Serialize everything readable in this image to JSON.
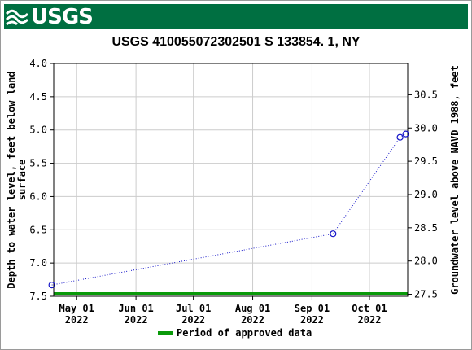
{
  "header": {
    "logo_text": "USGS"
  },
  "colors": {
    "banner": "#006f41",
    "series": "#1414c8",
    "approved": "#0a9a0a",
    "grid": "#cccccc"
  },
  "chart_data": {
    "type": "line",
    "title": "USGS 410055072302501 S 133854. 1, NY",
    "ylabel_left": "Depth to water level, feet below land surface",
    "ylabel_right": "Groundwater level above NAVD 1988, feet",
    "x_ticks": [
      {
        "date": "2022-05-01",
        "month": "May 01",
        "year": "2022"
      },
      {
        "date": "2022-06-01",
        "month": "Jun 01",
        "year": "2022"
      },
      {
        "date": "2022-07-01",
        "month": "Jul 01",
        "year": "2022"
      },
      {
        "date": "2022-08-01",
        "month": "Aug 01",
        "year": "2022"
      },
      {
        "date": "2022-09-01",
        "month": "Sep 01",
        "year": "2022"
      },
      {
        "date": "2022-10-01",
        "month": "Oct 01",
        "year": "2022"
      }
    ],
    "xlim": [
      "2022-04-19",
      "2022-10-21"
    ],
    "ylim_left": [
      7.5,
      4.0
    ],
    "y_ticks_left": [
      "4.0",
      "4.5",
      "5.0",
      "5.5",
      "6.0",
      "6.5",
      "7.0",
      "7.5"
    ],
    "ylim_right": [
      27.47,
      30.97
    ],
    "y_ticks_right": [
      "27.5",
      "28.0",
      "28.5",
      "29.0",
      "29.5",
      "30.0",
      "30.5"
    ],
    "series": [
      {
        "points": [
          {
            "x": "2022-04-18",
            "y": 7.33
          },
          {
            "x": "2022-09-12",
            "y": 6.56
          },
          {
            "x": "2022-10-17",
            "y": 5.11
          },
          {
            "x": "2022-10-20",
            "y": 5.06
          }
        ]
      }
    ],
    "approved_period": {
      "start": "2022-04-18",
      "end": "2022-10-21"
    },
    "legend": {
      "label": "Period of approved data",
      "placement": "bottom-center"
    },
    "grid": true
  }
}
